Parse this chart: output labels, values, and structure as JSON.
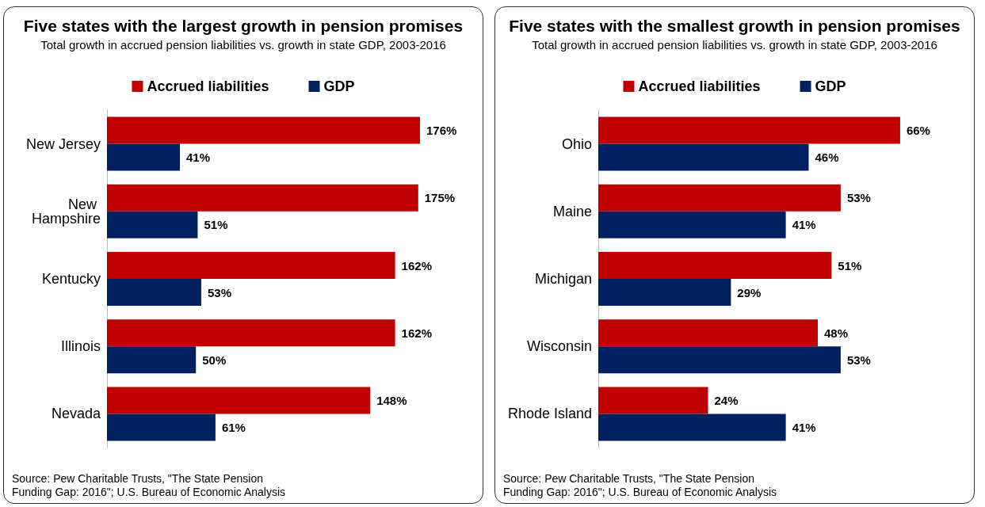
{
  "chart_data": [
    {
      "type": "bar",
      "orientation": "horizontal",
      "title": "Five states with the largest growth in pension promises",
      "subtitle": "Total growth in accrued pension liabilities vs. growth in state GDP, 2003-2016",
      "categories": [
        "New Jersey",
        "New Hampshire",
        "Kentucky",
        "Illinois",
        "Nevada"
      ],
      "legend": "top",
      "grid": false,
      "series": [
        {
          "name": "Accrued liabilities",
          "color": "#c00000",
          "values": [
            176,
            175,
            162,
            162,
            148
          ],
          "value_labels": [
            "176%",
            "175%",
            "162%",
            "162%",
            "148%"
          ]
        },
        {
          "name": "GDP",
          "color": "#002060",
          "values": [
            41,
            51,
            53,
            50,
            61
          ],
          "value_labels": [
            "41%",
            "51%",
            "53%",
            "50%",
            "61%"
          ]
        }
      ],
      "annotations": [
        "Source: Pew Charitable Trusts, \"The State Pension Funding Gap: 2016\"; U.S. Bureau of Economic Analysis"
      ]
    },
    {
      "type": "bar",
      "orientation": "horizontal",
      "title": "Five states with the smallest growth in pension promises",
      "subtitle": "Total growth in accrued pension liabilities vs. growth in state GDP, 2003-2016",
      "categories": [
        "Ohio",
        "Maine",
        "Michigan",
        "Wisconsin",
        "Rhode Island"
      ],
      "legend": "top",
      "grid": false,
      "series": [
        {
          "name": "Accrued liabilities",
          "color": "#c00000",
          "values": [
            66,
            53,
            51,
            48,
            24
          ],
          "value_labels": [
            "66%",
            "53%",
            "51%",
            "48%",
            "24%"
          ]
        },
        {
          "name": "GDP",
          "color": "#002060",
          "values": [
            46,
            41,
            29,
            53,
            41
          ],
          "value_labels": [
            "46%",
            "41%",
            "29%",
            "53%",
            "41%"
          ]
        }
      ],
      "annotations": [
        "Source: Pew Charitable Trusts, \"The State Pension Funding Gap: 2016\"; U.S. Bureau of Economic Analysis"
      ]
    }
  ]
}
